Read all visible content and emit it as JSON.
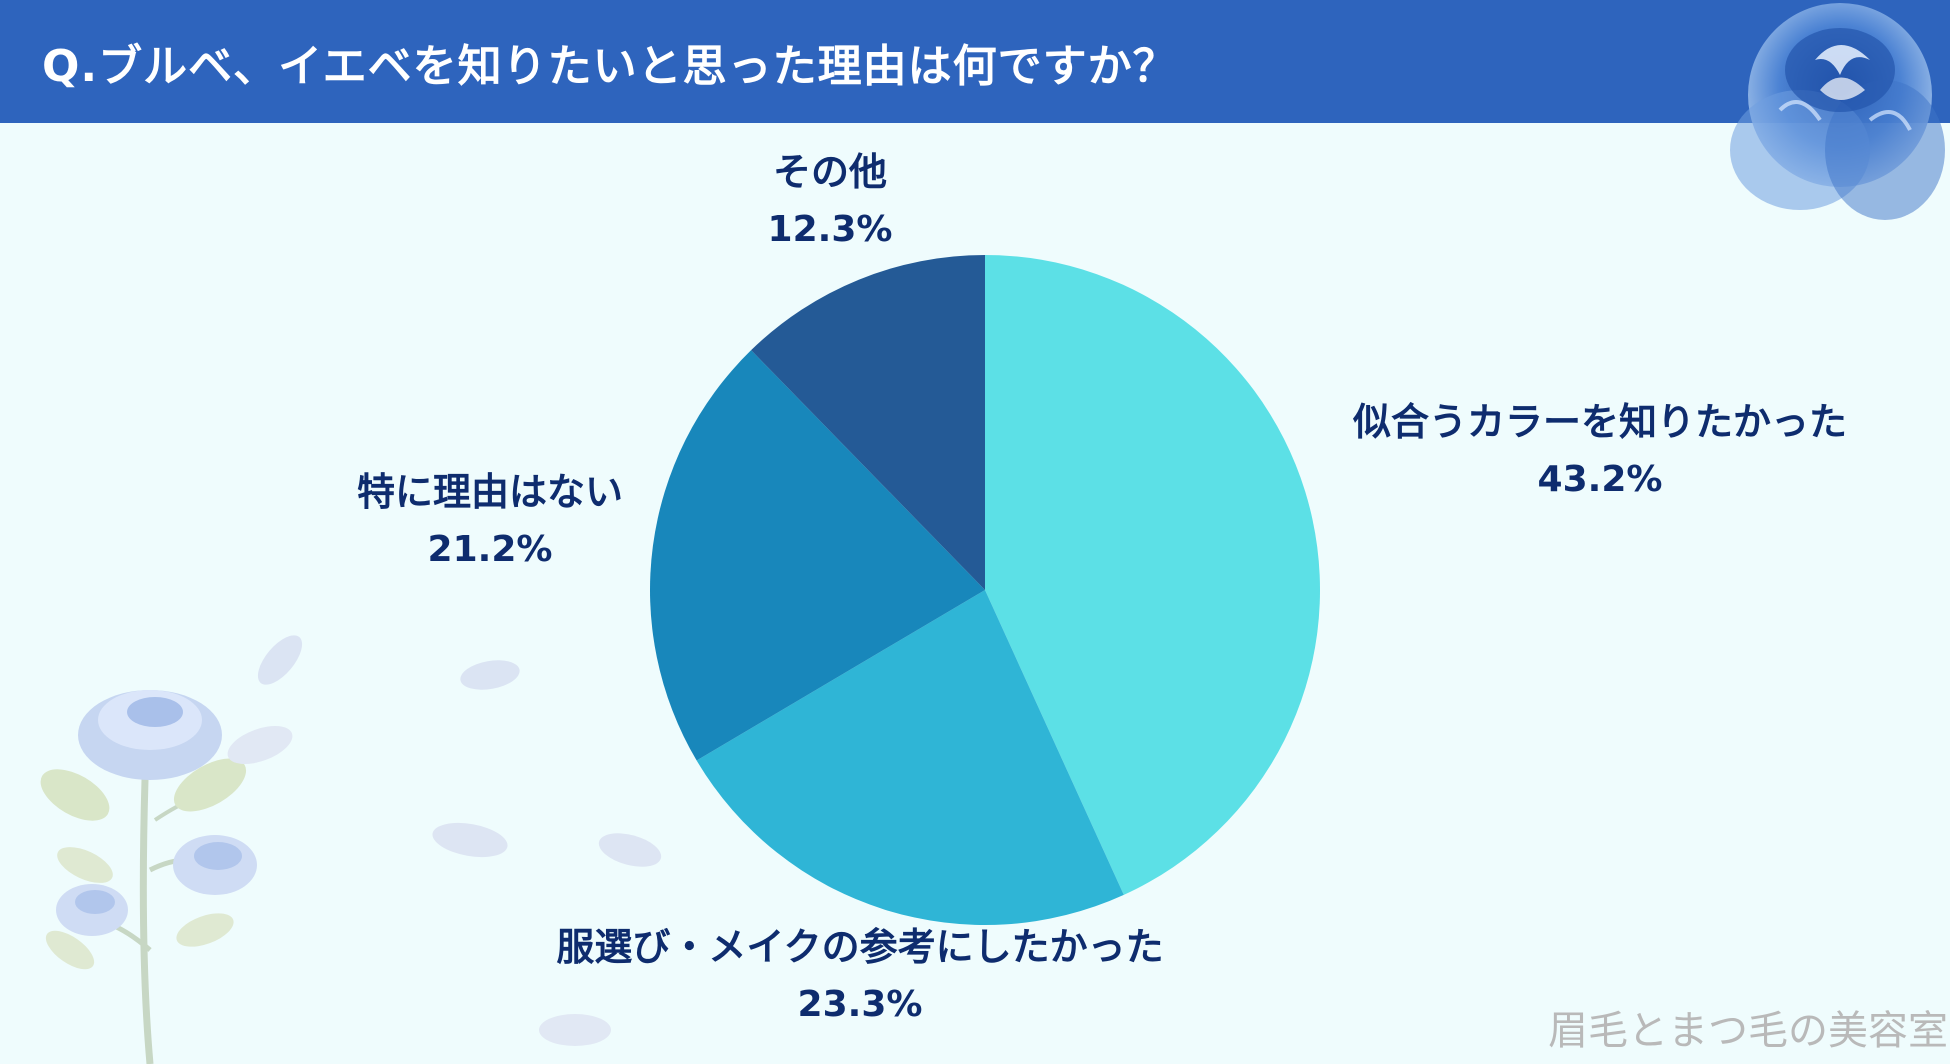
{
  "header": {
    "title": "Q.ブルベ、イエベを知りたいと思った理由は何ですか？"
  },
  "chart_data": {
    "type": "pie",
    "title": "Q.ブルベ、イエベを知りたいと思った理由は何ですか？",
    "slices": [
      {
        "label": "似合うカラーを知りたかった",
        "value": 43.2,
        "value_label": "43.2%",
        "color": "#5ce0e6"
      },
      {
        "label": "服選び・メイクの参考にしたかった",
        "value": 23.3,
        "value_label": "23.3%",
        "color": "#2fb5d6"
      },
      {
        "label": "特に理由はない",
        "value": 21.2,
        "value_label": "21.2%",
        "color": "#1887bb"
      },
      {
        "label": "その他",
        "value": 12.3,
        "value_label": "12.3%",
        "color": "#245a96"
      }
    ]
  },
  "watermark": "眉毛とまつ毛の美容室",
  "decorations": {
    "top_right": "blue-rose-icon",
    "bottom_left": "blue-rose-branch-icon"
  },
  "colors": {
    "header": "#2e64bd",
    "background": "#effcfd",
    "label_text": "#0e2c6e"
  }
}
